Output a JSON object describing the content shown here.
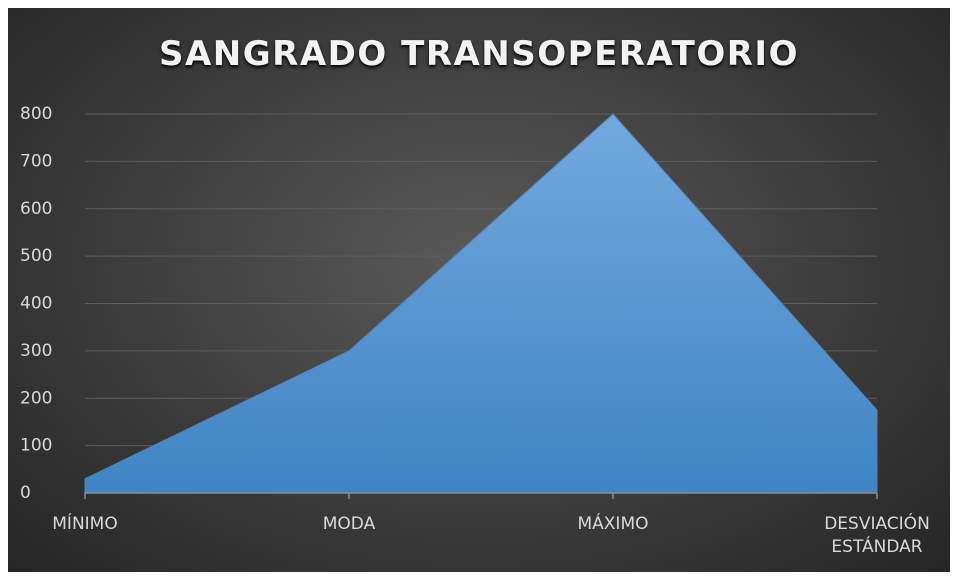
{
  "chart_data": {
    "type": "area",
    "title": "SANGRADO TRANSOPERATORIO",
    "categories": [
      "MÍNIMO",
      "MODA",
      "MÁXIMO",
      "DESVIACIÓN ESTÁNDAR"
    ],
    "values": [
      30,
      300,
      800,
      175
    ],
    "color": "#5b9bd5",
    "ylim": [
      0,
      800
    ],
    "yticks": [
      0,
      100,
      200,
      300,
      400,
      500,
      600,
      700,
      800
    ],
    "grid": true
  }
}
